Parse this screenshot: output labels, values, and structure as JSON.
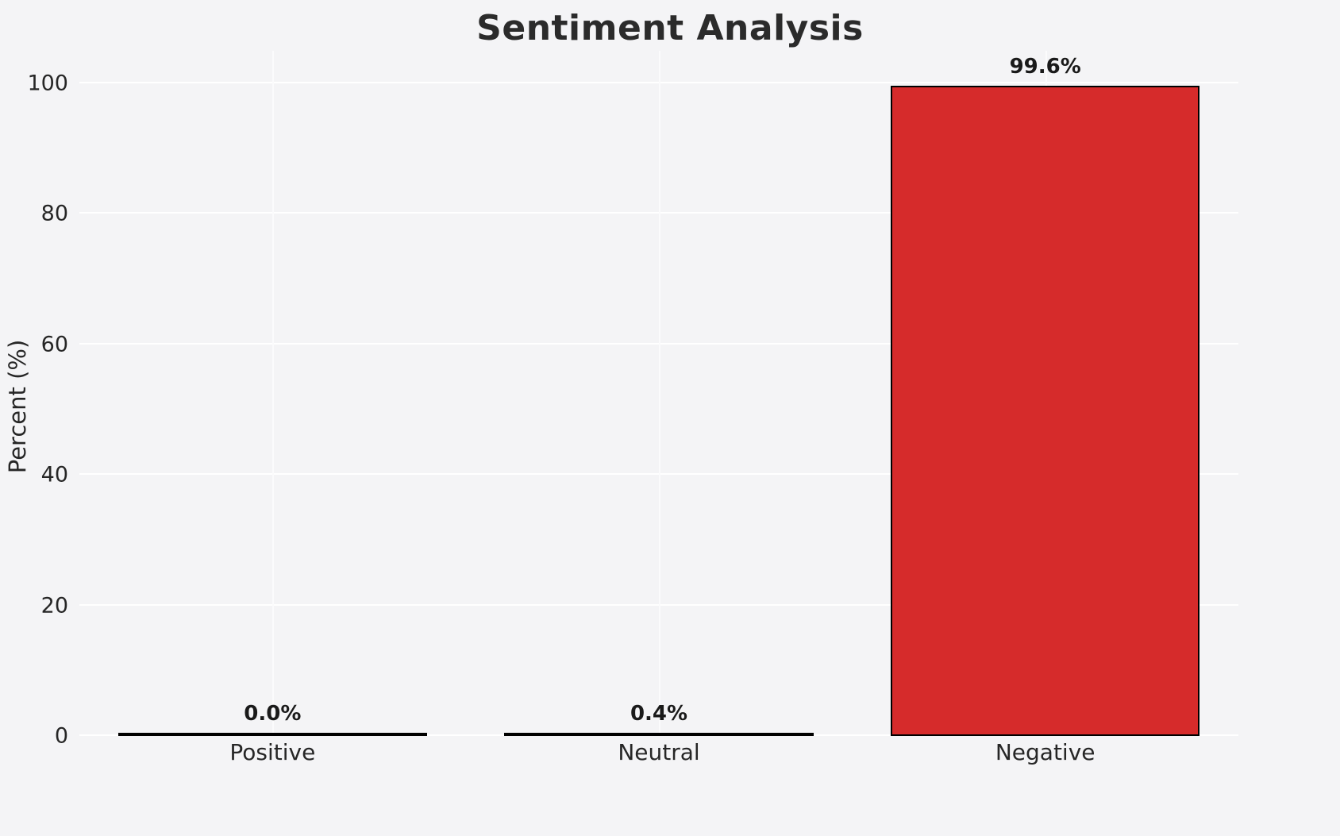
{
  "chart_data": {
    "type": "bar",
    "title": "Sentiment Analysis",
    "ylabel": "Percent (%)",
    "xlabel": "",
    "categories": [
      "Positive",
      "Neutral",
      "Negative"
    ],
    "values": [
      0.0,
      0.4,
      99.6
    ],
    "value_labels": [
      "0.0%",
      "0.4%",
      "99.6%"
    ],
    "yticks": [
      0,
      20,
      40,
      60,
      80,
      100
    ],
    "ylim": [
      0,
      105
    ],
    "grid": true,
    "legend": "none",
    "bar_colors": [
      "#c8c8c8",
      "#2a2a2a",
      "#d62b2b"
    ],
    "bar_edge_color": "#000000",
    "background_color": "#f4f4f6",
    "gridline_color": "#ffffff"
  }
}
